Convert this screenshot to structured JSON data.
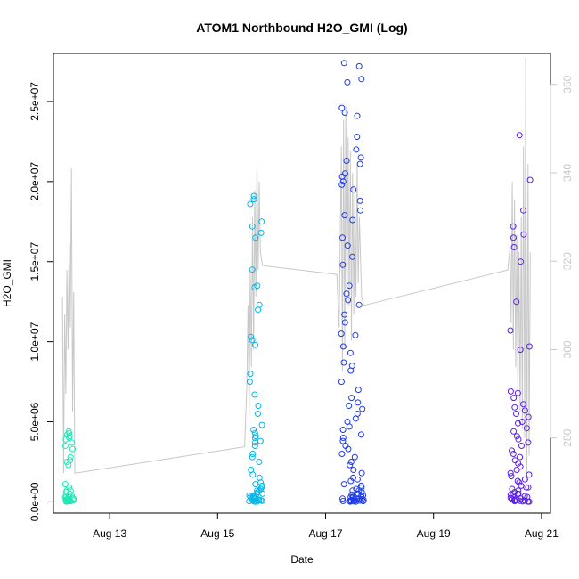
{
  "chart_data": {
    "type": "scatter",
    "title": "ATOM1 Northbound H2O_GMI (Log)",
    "xlabel": "Date",
    "ylabel": "H2O_GMI",
    "xlim": [
      "2016-08-11 23:00",
      "2016-08-21 04:00"
    ],
    "ylim": [
      -700000,
      28000000
    ],
    "y_ticks": [
      {
        "value": 0,
        "label": "0.0e+00"
      },
      {
        "value": 5000000,
        "label": "5.0e+06"
      },
      {
        "value": 10000000,
        "label": "1.0e+07"
      },
      {
        "value": 15000000,
        "label": "1.5e+07"
      },
      {
        "value": 20000000,
        "label": "2.0e+07"
      },
      {
        "value": 25000000,
        "label": "2.5e+07"
      }
    ],
    "x_ticks": [
      {
        "value": "2016-08-13",
        "label": "Aug 13"
      },
      {
        "value": "2016-08-15",
        "label": "Aug 15"
      },
      {
        "value": "2016-08-17",
        "label": "Aug 17"
      },
      {
        "value": "2016-08-19",
        "label": "Aug 19"
      },
      {
        "value": "2016-08-21",
        "label": "Aug 21"
      }
    ],
    "y2_ticks": [
      {
        "value": 280,
        "label": "280"
      },
      {
        "value": 300,
        "label": "300"
      },
      {
        "value": 320,
        "label": "320"
      },
      {
        "value": 340,
        "label": "340"
      },
      {
        "value": 360,
        "label": "360"
      }
    ],
    "y2lim": [
      263,
      367
    ],
    "colors": {
      "f1": "#1de9b6",
      "f2": "#00b7ea",
      "f3": "#1f3be8",
      "f4": "#5a1fe8",
      "line": "#c8c8c8"
    },
    "flights": [
      {
        "color_key": "f1",
        "start": "2016-08-12 04:00",
        "end": "2016-08-12 08:00",
        "points": [
          4000000,
          4100000,
          3900000,
          2500000,
          4400000,
          4300000,
          3500000,
          3300000,
          2600000,
          2300000,
          4200000,
          3700000,
          2800000,
          1100000,
          900000,
          700000,
          700000,
          600000,
          500000,
          400000,
          300000,
          300000,
          200000,
          200000,
          150000,
          100000,
          100000,
          80000,
          60000,
          50000,
          40000,
          30000,
          20000,
          200000,
          300000,
          150000,
          100000,
          50000,
          30000,
          400000
        ]
      },
      {
        "color_key": "f2",
        "start": "2016-08-15 14:00",
        "end": "2016-08-15 20:00",
        "points": [
          19100000,
          18900000,
          18600000,
          17500000,
          17200000,
          16800000,
          16500000,
          14500000,
          13500000,
          13400000,
          12300000,
          12000000,
          10300000,
          10100000,
          9800000,
          8000000,
          7500000,
          6700000,
          6000000,
          5500000,
          4800000,
          4500000,
          4300000,
          4100000,
          4000000,
          3800000,
          3700000,
          3500000,
          3000000,
          2800000,
          2500000,
          2000000,
          1700000,
          1500000,
          1200000,
          1000000,
          900000,
          800000,
          700000,
          600000,
          500000,
          400000,
          350000,
          300000,
          250000,
          200000,
          150000,
          100000,
          80000,
          60000,
          40000,
          30000,
          20000,
          10000,
          300000,
          500000,
          200000,
          100000,
          700000,
          1100000
        ]
      },
      {
        "color_key": "f3",
        "start": "2016-08-17 07:00",
        "end": "2016-08-17 17:00",
        "points": [
          27400000,
          27200000,
          26400000,
          26200000,
          24600000,
          24300000,
          24100000,
          22800000,
          22000000,
          21500000,
          21300000,
          21100000,
          20500000,
          20300000,
          20000000,
          19800000,
          19500000,
          18800000,
          18200000,
          17900000,
          17600000,
          16500000,
          16000000,
          15300000,
          14800000,
          13500000,
          13000000,
          12600000,
          12300000,
          11700000,
          11200000,
          10500000,
          10400000,
          9700000,
          9300000,
          8700000,
          8500000,
          8200000,
          7500000,
          7000000,
          6500000,
          6200000,
          6000000,
          5800000,
          5500000,
          5200000,
          5000000,
          4700000,
          4500000,
          4200000,
          4000000,
          3800000,
          3500000,
          3300000,
          3000000,
          2800000,
          2500000,
          2300000,
          2000000,
          1800000,
          1500000,
          1300000,
          1100000,
          900000,
          800000,
          700000,
          600000,
          500000,
          450000,
          400000,
          350000,
          300000,
          250000,
          200000,
          180000,
          160000,
          140000,
          120000,
          100000,
          80000,
          60000,
          50000,
          40000,
          30000,
          20000,
          10000,
          500000,
          700000,
          300000,
          100000,
          1000000,
          1400000,
          200000,
          50000
        ]
      },
      {
        "color_key": "f4",
        "start": "2016-08-20 10:00",
        "end": "2016-08-20 19:00",
        "points": [
          22900000,
          20100000,
          18200000,
          17200000,
          16700000,
          16500000,
          15900000,
          15000000,
          12500000,
          10700000,
          9700000,
          9500000,
          6900000,
          6800000,
          6500000,
          6100000,
          5900000,
          5700000,
          5500000,
          5300000,
          5000000,
          4900000,
          4600000,
          4400000,
          4100000,
          3900000,
          3700000,
          3500000,
          3200000,
          3000000,
          2800000,
          2600000,
          2400000,
          2200000,
          2000000,
          1800000,
          1600000,
          1400000,
          1200000,
          1000000,
          900000,
          800000,
          700000,
          600000,
          500000,
          450000,
          400000,
          350000,
          300000,
          250000,
          200000,
          150000,
          120000,
          100000,
          80000,
          60000,
          40000,
          30000,
          20000,
          10000,
          1300000,
          1700000,
          900000,
          500000,
          200000,
          100000
        ]
      }
    ],
    "overlay_series": {
      "axis": "right",
      "color_key": "line",
      "points": [
        [
          "2016-08-12 03:00",
          312
        ],
        [
          "2016-08-12 03:30",
          272
        ],
        [
          "2016-08-12 04:00",
          308
        ],
        [
          "2016-08-12 04:30",
          290
        ],
        [
          "2016-08-12 05:00",
          318
        ],
        [
          "2016-08-12 05:30",
          300
        ],
        [
          "2016-08-12 06:00",
          324
        ],
        [
          "2016-08-12 06:30",
          305
        ],
        [
          "2016-08-12 07:00",
          341
        ],
        [
          "2016-08-12 07:30",
          286
        ],
        [
          "2016-08-12 08:00",
          313
        ],
        [
          "2016-08-12 08:30",
          272
        ],
        [
          "2016-08-15 12:00",
          278
        ],
        [
          "2016-08-15 13:00",
          292
        ],
        [
          "2016-08-15 13:30",
          310
        ],
        [
          "2016-08-15 14:00",
          285
        ],
        [
          "2016-08-15 14:30",
          318
        ],
        [
          "2016-08-15 15:00",
          296
        ],
        [
          "2016-08-15 15:30",
          330
        ],
        [
          "2016-08-15 16:00",
          300
        ],
        [
          "2016-08-15 16:30",
          336
        ],
        [
          "2016-08-15 17:00",
          312
        ],
        [
          "2016-08-15 17:30",
          343
        ],
        [
          "2016-08-15 18:00",
          318
        ],
        [
          "2016-08-15 18:30",
          338
        ],
        [
          "2016-08-15 19:00",
          322
        ],
        [
          "2016-08-15 20:00",
          319
        ],
        [
          "2016-08-17 05:00",
          317
        ],
        [
          "2016-08-17 06:00",
          305
        ],
        [
          "2016-08-17 07:00",
          346
        ],
        [
          "2016-08-17 07:30",
          295
        ],
        [
          "2016-08-17 08:00",
          352
        ],
        [
          "2016-08-17 08:30",
          300
        ],
        [
          "2016-08-17 09:00",
          355
        ],
        [
          "2016-08-17 09:30",
          305
        ],
        [
          "2016-08-17 10:00",
          348
        ],
        [
          "2016-08-17 10:30",
          310
        ],
        [
          "2016-08-17 11:00",
          345
        ],
        [
          "2016-08-17 11:30",
          302
        ],
        [
          "2016-08-17 12:00",
          340
        ],
        [
          "2016-08-17 12:30",
          308
        ],
        [
          "2016-08-17 13:00",
          336
        ],
        [
          "2016-08-17 13:30",
          312
        ],
        [
          "2016-08-17 14:00",
          342
        ],
        [
          "2016-08-17 14:30",
          315
        ],
        [
          "2016-08-17 15:00",
          330
        ],
        [
          "2016-08-17 16:00",
          312
        ],
        [
          "2016-08-17 17:00",
          310
        ],
        [
          "2016-08-20 09:00",
          318
        ],
        [
          "2016-08-20 10:00",
          323
        ],
        [
          "2016-08-20 10:30",
          306
        ],
        [
          "2016-08-20 11:00",
          338
        ],
        [
          "2016-08-20 11:30",
          300
        ],
        [
          "2016-08-20 12:00",
          334
        ],
        [
          "2016-08-20 12:30",
          296
        ],
        [
          "2016-08-20 13:00",
          326
        ],
        [
          "2016-08-20 13:30",
          290
        ],
        [
          "2016-08-20 14:00",
          322
        ],
        [
          "2016-08-20 14:30",
          286
        ],
        [
          "2016-08-20 15:00",
          330
        ],
        [
          "2016-08-20 15:30",
          282
        ],
        [
          "2016-08-20 16:00",
          346
        ],
        [
          "2016-08-20 16:30",
          280
        ],
        [
          "2016-08-20 17:00",
          366
        ],
        [
          "2016-08-20 17:30",
          270
        ],
        [
          "2016-08-20 18:00",
          342
        ],
        [
          "2016-08-20 18:30",
          276
        ],
        [
          "2016-08-20 19:00",
          322
        ]
      ]
    }
  }
}
